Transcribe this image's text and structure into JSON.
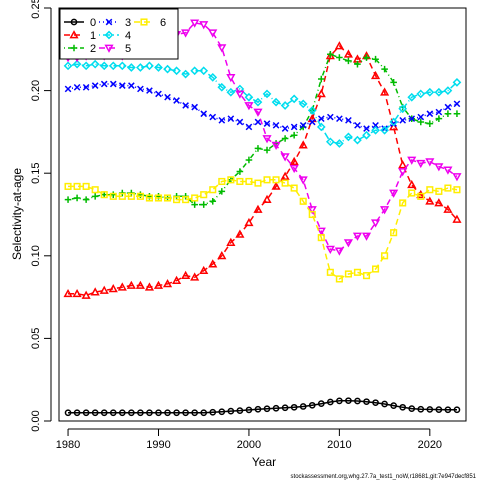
{
  "chart_data": {
    "type": "line",
    "xlabel": "Year",
    "ylabel": "Selectivity-at-age",
    "footnote": "stockassessment.org,whg.27.7a_test1_noW,r18681,git:7e947decf851",
    "xlim": [
      1979,
      2024
    ],
    "ylim": [
      0,
      0.25
    ],
    "xticks": [
      1980,
      1990,
      2000,
      2010,
      2020
    ],
    "yticks": [
      0.0,
      0.05,
      0.1,
      0.15,
      0.2,
      0.25
    ],
    "grid": false,
    "legend_position": "top-left",
    "years": [
      1980,
      1981,
      1982,
      1983,
      1984,
      1985,
      1986,
      1987,
      1988,
      1989,
      1990,
      1991,
      1992,
      1993,
      1994,
      1995,
      1996,
      1997,
      1998,
      1999,
      2000,
      2001,
      2002,
      2003,
      2004,
      2005,
      2006,
      2007,
      2008,
      2009,
      2010,
      2011,
      2012,
      2013,
      2014,
      2015,
      2016,
      2017,
      2018,
      2019,
      2020,
      2021,
      2022,
      2023
    ],
    "series": [
      {
        "name": "0",
        "color": "#000000",
        "marker": "circle",
        "dash": "solid",
        "values": [
          0.005,
          0.005,
          0.005,
          0.005,
          0.005,
          0.005,
          0.005,
          0.005,
          0.005,
          0.005,
          0.005,
          0.005,
          0.005,
          0.005,
          0.005,
          0.005,
          0.0053,
          0.0056,
          0.006,
          0.0063,
          0.0067,
          0.0071,
          0.0074,
          0.0077,
          0.008,
          0.0083,
          0.0088,
          0.0095,
          0.0105,
          0.0115,
          0.0122,
          0.0123,
          0.0121,
          0.0117,
          0.0111,
          0.0103,
          0.0093,
          0.0083,
          0.0075,
          0.0071,
          0.007,
          0.0069,
          0.0068,
          0.0068
        ]
      },
      {
        "name": "1",
        "color": "#ff0000",
        "marker": "triangle-up",
        "dash": "long",
        "values": [
          0.077,
          0.077,
          0.076,
          0.078,
          0.079,
          0.08,
          0.081,
          0.082,
          0.082,
          0.081,
          0.082,
          0.083,
          0.085,
          0.088,
          0.087,
          0.091,
          0.095,
          0.1,
          0.108,
          0.113,
          0.12,
          0.128,
          0.134,
          0.142,
          0.148,
          0.157,
          0.167,
          0.183,
          0.198,
          0.221,
          0.227,
          0.222,
          0.219,
          0.221,
          0.209,
          0.199,
          0.178,
          0.155,
          0.143,
          0.137,
          0.133,
          0.132,
          0.128,
          0.122
        ]
      },
      {
        "name": "2",
        "color": "#00bb00",
        "marker": "plus",
        "dash": "dashdot",
        "values": [
          0.134,
          0.135,
          0.134,
          0.136,
          0.137,
          0.137,
          0.138,
          0.138,
          0.137,
          0.136,
          0.136,
          0.135,
          0.136,
          0.136,
          0.131,
          0.131,
          0.133,
          0.139,
          0.146,
          0.151,
          0.158,
          0.165,
          0.164,
          0.168,
          0.171,
          0.173,
          0.178,
          0.188,
          0.207,
          0.222,
          0.22,
          0.218,
          0.216,
          0.22,
          0.219,
          0.213,
          0.205,
          0.19,
          0.183,
          0.181,
          0.18,
          0.183,
          0.186,
          0.186
        ]
      },
      {
        "name": "3",
        "color": "#0000ff",
        "marker": "cross",
        "dash": "dotted",
        "values": [
          0.201,
          0.202,
          0.202,
          0.203,
          0.204,
          0.204,
          0.203,
          0.203,
          0.201,
          0.2,
          0.198,
          0.196,
          0.194,
          0.191,
          0.19,
          0.186,
          0.184,
          0.182,
          0.183,
          0.181,
          0.178,
          0.181,
          0.18,
          0.179,
          0.177,
          0.178,
          0.179,
          0.181,
          0.183,
          0.184,
          0.183,
          0.182,
          0.179,
          0.177,
          0.179,
          0.177,
          0.18,
          0.182,
          0.183,
          0.184,
          0.186,
          0.187,
          0.19,
          0.192
        ]
      },
      {
        "name": "4",
        "color": "#00ddee",
        "marker": "diamond",
        "dash": "dotdash",
        "values": [
          0.215,
          0.216,
          0.215,
          0.216,
          0.215,
          0.215,
          0.215,
          0.214,
          0.214,
          0.215,
          0.214,
          0.213,
          0.212,
          0.21,
          0.212,
          0.212,
          0.208,
          0.202,
          0.199,
          0.201,
          0.196,
          0.193,
          0.198,
          0.193,
          0.191,
          0.195,
          0.192,
          0.188,
          0.178,
          0.169,
          0.168,
          0.172,
          0.17,
          0.173,
          0.176,
          0.176,
          0.181,
          0.189,
          0.196,
          0.198,
          0.199,
          0.199,
          0.2,
          0.205
        ]
      },
      {
        "name": "5",
        "color": "#ee00ee",
        "marker": "triangle-down",
        "dash": "long",
        "values": [
          0.22,
          0.22,
          0.221,
          0.222,
          0.221,
          0.222,
          0.221,
          0.223,
          0.222,
          0.224,
          0.229,
          0.232,
          0.234,
          0.235,
          0.241,
          0.24,
          0.235,
          0.226,
          0.208,
          0.198,
          0.191,
          0.187,
          0.171,
          0.167,
          0.16,
          0.153,
          0.146,
          0.128,
          0.115,
          0.104,
          0.103,
          0.108,
          0.112,
          0.112,
          0.12,
          0.128,
          0.138,
          0.151,
          0.158,
          0.156,
          0.157,
          0.154,
          0.152,
          0.148
        ]
      },
      {
        "name": "6",
        "color": "#ffee00",
        "marker": "square",
        "dash": "long",
        "values": [
          0.142,
          0.142,
          0.142,
          0.14,
          0.137,
          0.136,
          0.136,
          0.136,
          0.136,
          0.135,
          0.135,
          0.135,
          0.134,
          0.134,
          0.135,
          0.137,
          0.14,
          0.145,
          0.146,
          0.145,
          0.145,
          0.144,
          0.146,
          0.146,
          0.144,
          0.141,
          0.133,
          0.125,
          0.111,
          0.09,
          0.086,
          0.089,
          0.09,
          0.088,
          0.092,
          0.1,
          0.114,
          0.132,
          0.138,
          0.136,
          0.14,
          0.139,
          0.141,
          0.14
        ]
      }
    ]
  }
}
